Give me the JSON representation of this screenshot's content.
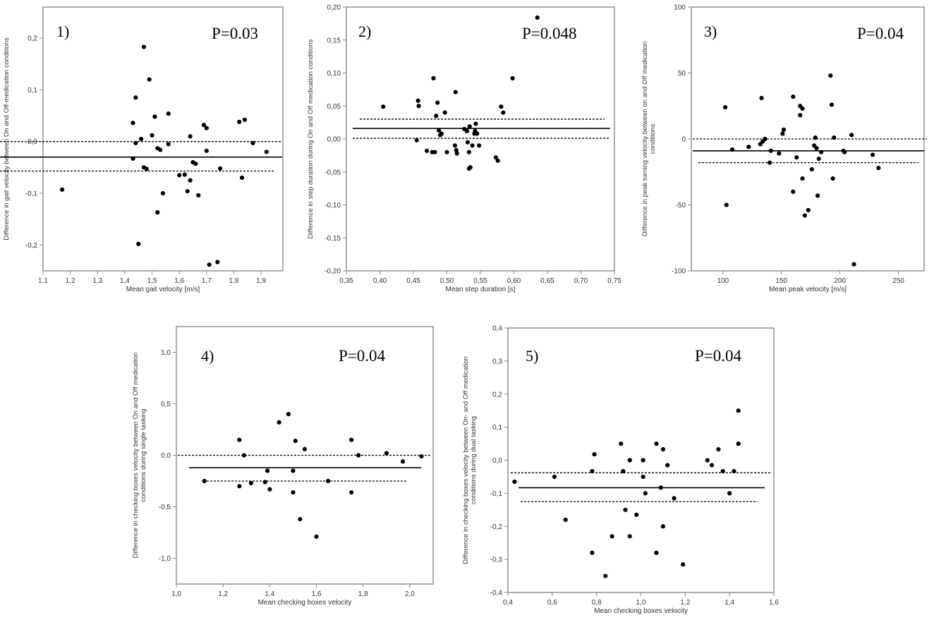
{
  "chart_data": [
    {
      "type": "scatter",
      "panel": "1)",
      "pvalue": "P=0.03",
      "xlabel": "Mean gait velocity [m/s]",
      "ylabel": [
        "Difference in gait velocity between On and Off-medication conditions"
      ],
      "xlim": [
        1.1,
        1.98
      ],
      "ylim": [
        -0.25,
        0.26
      ],
      "xticks": [
        1.1,
        1.2,
        1.3,
        1.4,
        1.5,
        1.6,
        1.7,
        1.8,
        1.9
      ],
      "xtick_labels": [
        "1,1",
        "1,2",
        "1,3",
        "1,4",
        "1,5",
        "1,6",
        "1,7",
        "1,8",
        "1,9"
      ],
      "yticks": [
        -0.2,
        -0.1,
        0.0,
        0.1,
        0.2
      ],
      "ytick_labels": [
        "-0,2",
        "-0,1",
        "0,0",
        "0,1",
        "0,2"
      ],
      "mean_line": -0.03,
      "loa_lines": [
        0.0,
        -0.057
      ],
      "points": [
        [
          1.17,
          -0.093
        ],
        [
          1.43,
          0.036
        ],
        [
          1.43,
          -0.033
        ],
        [
          1.44,
          -0.003
        ],
        [
          1.44,
          0.085
        ],
        [
          1.45,
          -0.198
        ],
        [
          1.46,
          0.005
        ],
        [
          1.47,
          0.183
        ],
        [
          1.47,
          -0.05
        ],
        [
          1.48,
          -0.053
        ],
        [
          1.49,
          0.12
        ],
        [
          1.5,
          0.012
        ],
        [
          1.51,
          0.048
        ],
        [
          1.52,
          -0.013
        ],
        [
          1.52,
          -0.137
        ],
        [
          1.53,
          -0.016
        ],
        [
          1.54,
          -0.1
        ],
        [
          1.56,
          0.054
        ],
        [
          1.56,
          -0.005
        ],
        [
          1.6,
          -0.065
        ],
        [
          1.62,
          -0.064
        ],
        [
          1.63,
          -0.096
        ],
        [
          1.64,
          0.01
        ],
        [
          1.64,
          -0.075
        ],
        [
          1.65,
          -0.04
        ],
        [
          1.66,
          -0.043
        ],
        [
          1.67,
          -0.104
        ],
        [
          1.69,
          0.032
        ],
        [
          1.7,
          0.026
        ],
        [
          1.7,
          -0.018
        ],
        [
          1.71,
          -0.238
        ],
        [
          1.74,
          -0.233
        ],
        [
          1.75,
          -0.052
        ],
        [
          1.82,
          0.038
        ],
        [
          1.83,
          -0.07
        ],
        [
          1.84,
          0.042
        ],
        [
          1.87,
          -0.003
        ],
        [
          1.92,
          -0.02
        ]
      ]
    },
    {
      "type": "scatter",
      "panel": "2)",
      "pvalue": "P=0.048",
      "xlabel": "Mean step duration [s]",
      "ylabel": [
        "Difference in step duration during On and Off medication conditions"
      ],
      "xlim": [
        0.35,
        0.75
      ],
      "ylim": [
        -0.2,
        0.2
      ],
      "xticks": [
        0.35,
        0.4,
        0.45,
        0.5,
        0.55,
        0.6,
        0.65,
        0.7,
        0.75
      ],
      "xtick_labels": [
        "0,35",
        "0,40",
        "0,45",
        "0,50",
        "0,55",
        "0,60",
        "0,65",
        "0,70",
        "0,75"
      ],
      "yticks": [
        -0.2,
        -0.15,
        -0.1,
        -0.05,
        0.0,
        0.05,
        0.1,
        0.15,
        0.2
      ],
      "ytick_labels": [
        "-0,20",
        "-0,15",
        "-0,10",
        "-0,05",
        "0,00",
        "0,05",
        "0,10",
        "0,15",
        "0,20"
      ],
      "mean_line": 0.016,
      "loa_lines": [
        0.03,
        0.001
      ],
      "points": [
        [
          0.405,
          0.049
        ],
        [
          0.455,
          -0.002
        ],
        [
          0.457,
          0.058
        ],
        [
          0.458,
          0.05
        ],
        [
          0.47,
          -0.018
        ],
        [
          0.478,
          -0.02
        ],
        [
          0.48,
          0.092
        ],
        [
          0.482,
          -0.02
        ],
        [
          0.484,
          0.035
        ],
        [
          0.486,
          0.055
        ],
        [
          0.488,
          0.013
        ],
        [
          0.49,
          0.006
        ],
        [
          0.492,
          0.008
        ],
        [
          0.497,
          0.04
        ],
        [
          0.5,
          -0.02
        ],
        [
          0.512,
          -0.01
        ],
        [
          0.513,
          0.071
        ],
        [
          0.514,
          -0.017
        ],
        [
          0.515,
          -0.022
        ],
        [
          0.526,
          0.015
        ],
        [
          0.53,
          0.012
        ],
        [
          0.531,
          -0.005
        ],
        [
          0.533,
          -0.045
        ],
        [
          0.533,
          -0.02
        ],
        [
          0.534,
          0.019
        ],
        [
          0.535,
          -0.043
        ],
        [
          0.538,
          -0.01
        ],
        [
          0.541,
          0.008
        ],
        [
          0.542,
          0.012
        ],
        [
          0.543,
          0.023
        ],
        [
          0.545,
          0.008
        ],
        [
          0.548,
          -0.01
        ],
        [
          0.573,
          -0.028
        ],
        [
          0.576,
          -0.033
        ],
        [
          0.581,
          0.049
        ],
        [
          0.584,
          0.04
        ],
        [
          0.598,
          0.092
        ],
        [
          0.635,
          0.184
        ]
      ]
    },
    {
      "type": "scatter",
      "panel": "3)",
      "pvalue": "P=0.04",
      "xlabel": "Mean peak velocity [m/s]",
      "ylabel": [
        "Difference in peak turning velocity between on and Off medication",
        "conditions"
      ],
      "xlim": [
        73,
        272
      ],
      "ylim": [
        -100,
        100
      ],
      "xticks": [
        100,
        150,
        200,
        250
      ],
      "xtick_labels": [
        "100",
        "150",
        "200",
        "250"
      ],
      "yticks": [
        -100,
        -50,
        0,
        50,
        100
      ],
      "ytick_labels": [
        "-100",
        "-50",
        "0",
        "50",
        "100"
      ],
      "mean_line": -9,
      "loa_lines": [
        0,
        -18
      ],
      "points": [
        [
          102,
          24
        ],
        [
          103,
          -50
        ],
        [
          108,
          -8
        ],
        [
          122,
          -6
        ],
        [
          132,
          -4
        ],
        [
          133,
          31
        ],
        [
          134,
          -2
        ],
        [
          136,
          0
        ],
        [
          140,
          -18
        ],
        [
          141,
          -9
        ],
        [
          148,
          -11
        ],
        [
          151,
          4
        ],
        [
          152,
          7
        ],
        [
          160,
          -40
        ],
        [
          160,
          32
        ],
        [
          163,
          -14
        ],
        [
          166,
          18
        ],
        [
          166,
          25
        ],
        [
          168,
          23
        ],
        [
          168,
          -30
        ],
        [
          170,
          -58
        ],
        [
          173,
          -54
        ],
        [
          176,
          -23
        ],
        [
          178,
          -5
        ],
        [
          179,
          1
        ],
        [
          180,
          -7
        ],
        [
          181,
          -43
        ],
        [
          182,
          -15
        ],
        [
          184,
          -10
        ],
        [
          192,
          48
        ],
        [
          193,
          26
        ],
        [
          194,
          -30
        ],
        [
          195,
          1
        ],
        [
          203,
          -9
        ],
        [
          204,
          -10
        ],
        [
          210,
          3
        ],
        [
          212,
          -95
        ],
        [
          228,
          -12
        ],
        [
          233,
          -22
        ]
      ]
    },
    {
      "type": "scatter",
      "panel": "4)",
      "pvalue": "P=0.04",
      "xlabel": "Mean checking boxes velocity",
      "ylabel": [
        "Difference in checking boxes velocity between On and Off medication",
        "conditions during single tasking"
      ],
      "xlim": [
        1.0,
        2.1
      ],
      "ylim": [
        -1.25,
        1.25
      ],
      "xticks": [
        1.0,
        1.2,
        1.4,
        1.6,
        1.8,
        2.0
      ],
      "xtick_labels": [
        "1,0",
        "1,2",
        "1,4",
        "1,6",
        "1,8",
        "2,0"
      ],
      "yticks": [
        -1.0,
        -0.5,
        0.0,
        0.5,
        1.0
      ],
      "ytick_labels": [
        "-1,0",
        "-0,5",
        "0,0",
        "0,5",
        "1,0"
      ],
      "mean_line": -0.12,
      "loa_lines": [
        0.0,
        -0.25
      ],
      "points": [
        [
          1.12,
          -0.25
        ],
        [
          1.27,
          0.15
        ],
        [
          1.27,
          -0.3
        ],
        [
          1.29,
          0.0
        ],
        [
          1.32,
          -0.27
        ],
        [
          1.38,
          -0.26
        ],
        [
          1.39,
          -0.15
        ],
        [
          1.4,
          -0.33
        ],
        [
          1.44,
          0.32
        ],
        [
          1.48,
          0.4
        ],
        [
          1.5,
          -0.15
        ],
        [
          1.5,
          -0.36
        ],
        [
          1.51,
          0.14
        ],
        [
          1.53,
          -0.62
        ],
        [
          1.55,
          0.06
        ],
        [
          1.6,
          -0.79
        ],
        [
          1.65,
          -0.25
        ],
        [
          1.75,
          0.15
        ],
        [
          1.75,
          -0.36
        ],
        [
          1.78,
          0.0
        ],
        [
          1.9,
          0.02
        ],
        [
          1.97,
          -0.06
        ],
        [
          2.05,
          -0.01
        ]
      ]
    },
    {
      "type": "scatter",
      "panel": "5)",
      "pvalue": "P=0.04",
      "xlabel": "Mean checking boxes velocity",
      "ylabel": [
        "Difference in checking boxes velocity between On- and Off medication",
        "conditions during dual tasking"
      ],
      "xlim": [
        0.4,
        1.6
      ],
      "ylim": [
        -0.4,
        0.4
      ],
      "xticks": [
        0.4,
        0.6,
        0.8,
        1.0,
        1.2,
        1.4,
        1.6
      ],
      "xtick_labels": [
        "0,4",
        "0,6",
        "0,8",
        "1,0",
        "1,2",
        "1,4",
        "1,6"
      ],
      "yticks": [
        -0.4,
        -0.3,
        -0.2,
        -0.1,
        0.0,
        0.1,
        0.2,
        0.3,
        0.4
      ],
      "ytick_labels": [
        "-0,4",
        "-0,3",
        "-0,2",
        "-0,1",
        "0,0",
        "0,1",
        "0,2",
        "0,3",
        "0,4"
      ],
      "mean_line": -0.083,
      "loa_lines": [
        -0.038,
        -0.125
      ],
      "points": [
        [
          0.43,
          -0.065
        ],
        [
          0.61,
          -0.05
        ],
        [
          0.66,
          -0.18
        ],
        [
          0.78,
          -0.28
        ],
        [
          0.78,
          -0.033
        ],
        [
          0.79,
          0.018
        ],
        [
          0.84,
          -0.35
        ],
        [
          0.87,
          -0.23
        ],
        [
          0.91,
          0.05
        ],
        [
          0.92,
          -0.033
        ],
        [
          0.93,
          -0.15
        ],
        [
          0.95,
          -0.23
        ],
        [
          0.95,
          0.0
        ],
        [
          0.98,
          -0.165
        ],
        [
          1.01,
          -0.05
        ],
        [
          1.01,
          0.0
        ],
        [
          1.02,
          -0.1
        ],
        [
          1.07,
          0.05
        ],
        [
          1.07,
          -0.28
        ],
        [
          1.09,
          -0.083
        ],
        [
          1.1,
          0.033
        ],
        [
          1.1,
          -0.2
        ],
        [
          1.12,
          -0.015
        ],
        [
          1.15,
          -0.115
        ],
        [
          1.19,
          -0.315
        ],
        [
          1.3,
          0.0
        ],
        [
          1.32,
          -0.015
        ],
        [
          1.35,
          0.033
        ],
        [
          1.37,
          -0.033
        ],
        [
          1.4,
          -0.1
        ],
        [
          1.42,
          -0.033
        ],
        [
          1.44,
          0.15
        ],
        [
          1.44,
          0.05
        ]
      ]
    }
  ]
}
